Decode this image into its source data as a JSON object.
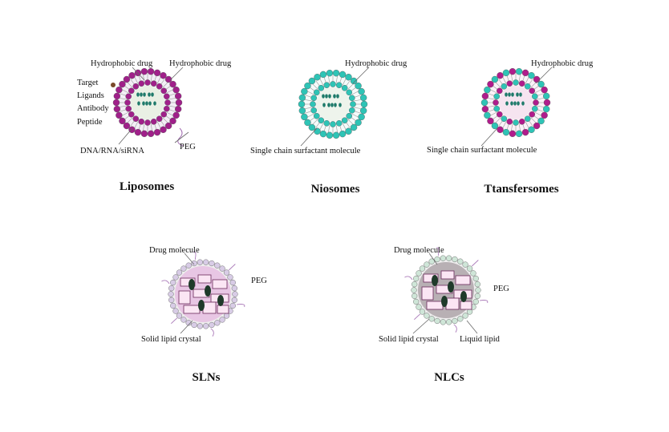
{
  "panels": [
    {
      "title": "Liposomes",
      "labels": [
        "Hydrophobic drug",
        "Hydrophobic drug",
        "Target",
        "Ligands",
        "Antibody",
        "Peptide",
        "PEG",
        "DNA/RNA/siRNA"
      ]
    },
    {
      "title": "Niosomes",
      "labels": [
        "Hydrophobic drug",
        "Single chain surfactant molecule"
      ]
    },
    {
      "title": "Ttansfersomes",
      "labels": [
        "Hydrophobic drug",
        "Single chain surfactant molecule"
      ]
    },
    {
      "title": "SLNs",
      "labels": [
        "Drug molecule",
        "PEG",
        "Solid lipid crystal"
      ]
    },
    {
      "title": "NLCs",
      "labels": [
        "Drug molecule",
        "PEG",
        "Solid lipid crystal",
        "Liquid lipid"
      ]
    }
  ]
}
